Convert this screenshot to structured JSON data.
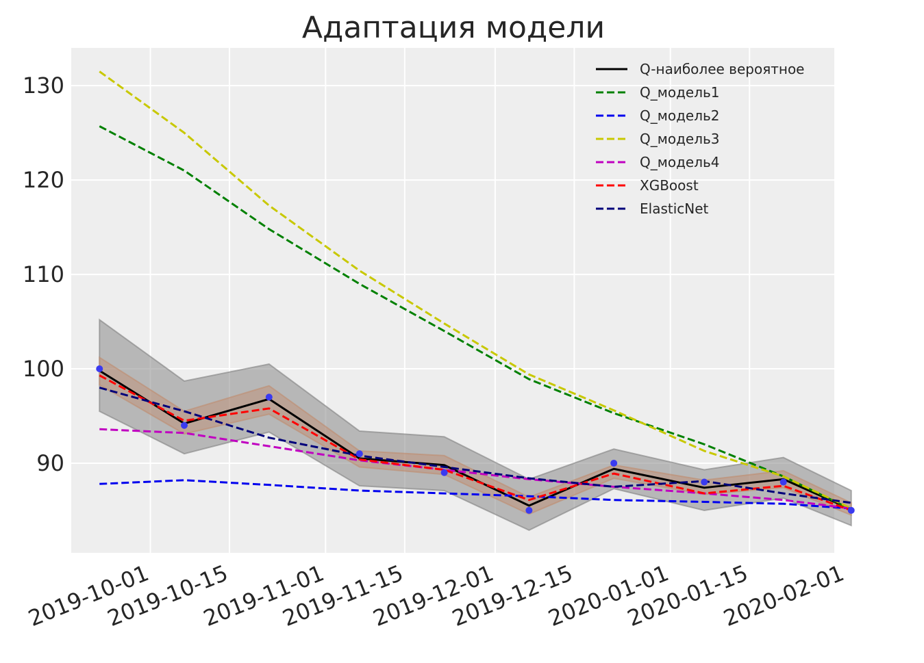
{
  "chart_data": {
    "type": "line",
    "title": "Адаптация модели",
    "xlabel": "",
    "ylabel": "",
    "xlim": [
      "2019-09-17",
      "2020-01-30"
    ],
    "ylim": [
      80.5,
      134
    ],
    "x_ticks": [
      "2019-10-01",
      "2019-10-15",
      "2019-11-01",
      "2019-11-15",
      "2019-12-01",
      "2019-12-15",
      "2020-01-01",
      "2020-01-15",
      "2020-02-01"
    ],
    "y_ticks": [
      90,
      100,
      110,
      120,
      130
    ],
    "grid": true,
    "legend_position": "top-right",
    "x": [
      "2019-09-22",
      "2019-10-07",
      "2019-10-24",
      "2019-11-07",
      "2019-11-22",
      "2019-12-07",
      "2019-12-24",
      "2020-01-07",
      "2020-01-21"
    ],
    "observed": {
      "color": "#3a3af0",
      "values": [
        100,
        94,
        97,
        91,
        89,
        85,
        90,
        88,
        88,
        85
      ]
    },
    "observed_x": [
      "2019-09-22",
      "2019-10-07",
      "2019-10-22",
      "2019-11-07",
      "2019-11-22",
      "2019-12-07",
      "2019-12-22",
      "2020-01-07",
      "2020-01-21",
      "2020-02-02"
    ],
    "bands": [
      {
        "color": "#808080",
        "opacity": 0.5,
        "x": [
          "2019-09-22",
          "2019-10-07",
          "2019-10-22",
          "2019-11-07",
          "2019-11-22",
          "2019-12-07",
          "2019-12-22",
          "2020-01-07",
          "2020-01-21",
          "2020-02-02"
        ],
        "upper": [
          105.2,
          98.7,
          100.5,
          93.4,
          92.8,
          88.3,
          91.5,
          89.3,
          90.6,
          87.1
        ],
        "lower": [
          95.5,
          91.0,
          93.3,
          87.6,
          87.1,
          82.9,
          87.3,
          85.0,
          86.3,
          83.4
        ]
      },
      {
        "color": "#c08c6e",
        "opacity": 0.45,
        "x": [
          "2019-09-22",
          "2019-10-07",
          "2019-10-22",
          "2019-11-07",
          "2019-11-22",
          "2019-12-07",
          "2019-12-22",
          "2020-01-07",
          "2020-01-21",
          "2020-02-02"
        ],
        "upper": [
          101.2,
          95.5,
          98.2,
          91.3,
          90.8,
          86.4,
          89.8,
          88.2,
          89.2,
          85.8
        ],
        "lower": [
          98.3,
          93.1,
          95.2,
          89.6,
          88.8,
          84.6,
          88.4,
          86.7,
          87.4,
          84.5
        ]
      }
    ],
    "series": [
      {
        "name": "Q-наиболее вероятное",
        "color": "#000000",
        "dash": "solid",
        "x": [
          "2019-09-22",
          "2019-10-07",
          "2019-10-22",
          "2019-11-07",
          "2019-11-22",
          "2019-12-07",
          "2019-12-22",
          "2020-01-07",
          "2020-01-21",
          "2020-02-02"
        ],
        "values": [
          99.8,
          94.2,
          96.8,
          90.5,
          89.8,
          85.5,
          89.4,
          87.4,
          88.3,
          85.1
        ]
      },
      {
        "name": "Q_модель1",
        "color": "#008000",
        "dash": "dashed",
        "x": [
          "2019-09-22",
          "2019-10-07",
          "2019-10-22",
          "2019-11-07",
          "2019-11-22",
          "2019-12-07",
          "2019-12-22",
          "2020-01-07",
          "2020-01-21",
          "2020-02-02"
        ],
        "values": [
          125.7,
          121.0,
          114.8,
          109.0,
          104.0,
          98.9,
          95.3,
          92.0,
          88.6,
          85.1
        ]
      },
      {
        "name": "Q_модель2",
        "color": "#0000ee",
        "dash": "dashed",
        "x": [
          "2019-09-22",
          "2019-10-07",
          "2019-10-22",
          "2019-11-07",
          "2019-11-22",
          "2019-12-07",
          "2019-12-22",
          "2020-01-07",
          "2020-01-21",
          "2020-02-02"
        ],
        "values": [
          87.8,
          88.2,
          87.7,
          87.1,
          86.8,
          86.5,
          86.1,
          85.9,
          85.7,
          85.2
        ]
      },
      {
        "name": "Q_модель3",
        "color": "#c8c800",
        "dash": "dashed",
        "x": [
          "2019-09-22",
          "2019-10-07",
          "2019-10-22",
          "2019-11-07",
          "2019-11-22",
          "2019-12-07",
          "2019-12-22",
          "2020-01-07",
          "2020-01-21",
          "2020-02-02"
        ],
        "values": [
          131.5,
          125.0,
          117.3,
          110.4,
          104.8,
          99.4,
          95.6,
          91.3,
          88.6,
          85.2
        ]
      },
      {
        "name": "Q_модель4",
        "color": "#c000c0",
        "dash": "dashed",
        "x": [
          "2019-09-22",
          "2019-10-07",
          "2019-10-22",
          "2019-11-07",
          "2019-11-22",
          "2019-12-07",
          "2019-12-22",
          "2020-01-07",
          "2020-01-21",
          "2020-02-02"
        ],
        "values": [
          93.6,
          93.2,
          91.8,
          90.3,
          89.3,
          88.3,
          87.5,
          86.8,
          86.1,
          85.2
        ]
      },
      {
        "name": "XGBoost",
        "color": "#ff0000",
        "dash": "dashed",
        "x": [
          "2019-09-22",
          "2019-10-07",
          "2019-10-22",
          "2019-11-07",
          "2019-11-22",
          "2019-12-07",
          "2019-12-22",
          "2020-01-07",
          "2020-01-21",
          "2020-02-02"
        ],
        "values": [
          99.3,
          94.5,
          95.8,
          90.4,
          89.3,
          86.1,
          88.9,
          86.8,
          87.6,
          85.0
        ]
      },
      {
        "name": "ElasticNet",
        "color": "#00007a",
        "dash": "dashed",
        "x": [
          "2019-09-22",
          "2019-10-07",
          "2019-10-22",
          "2019-11-07",
          "2019-11-22",
          "2019-12-07",
          "2019-12-22",
          "2020-01-07",
          "2020-01-21",
          "2020-02-02"
        ],
        "values": [
          98.0,
          95.5,
          92.7,
          90.8,
          89.6,
          88.4,
          87.5,
          88.1,
          86.8,
          85.8
        ]
      }
    ]
  }
}
